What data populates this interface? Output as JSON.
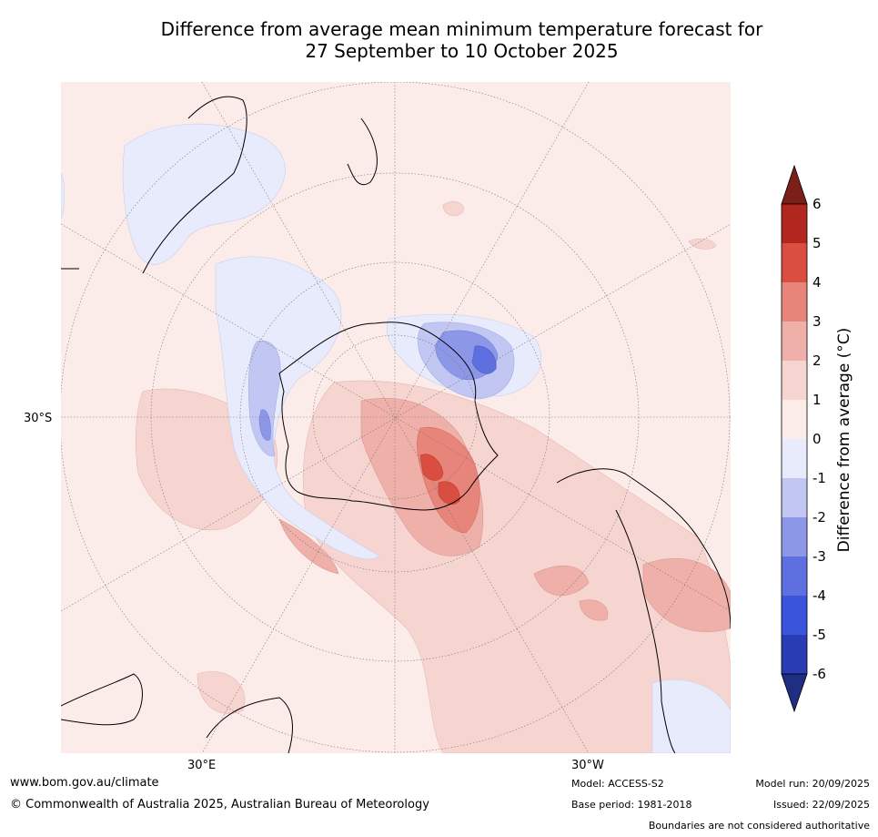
{
  "title": {
    "line1": "Difference from average mean minimum temperature forecast for",
    "line2": "27 September to 10 October 2025"
  },
  "map": {
    "lat_label": "30°S",
    "lon_labels": [
      "30°E",
      "30°W"
    ],
    "projection": "South Polar Stereographic",
    "region": "Southern Hemisphere / Antarctica"
  },
  "colorbar": {
    "label": "Difference from average (°C)",
    "ticks": [
      "6",
      "5",
      "4",
      "3",
      "2",
      "1",
      "0",
      "-1",
      "-2",
      "-3",
      "-4",
      "-5",
      "-6"
    ],
    "colors": {
      "extend_high": "#7b1f18",
      "5_6": "#b1271f",
      "4_5": "#d94e40",
      "3_4": "#e8857b",
      "2_3": "#efb0a9",
      "1_2": "#f6d5d1",
      "0_1": "#fbece9",
      "m1_0": "#e8ebfb",
      "m2_m1": "#c1c7f2",
      "m3_m2": "#8d97e8",
      "m4_m3": "#5e6fe0",
      "m5_m4": "#3a54dc",
      "m6_m5": "#2a3cb4",
      "extend_low": "#1f2d83"
    }
  },
  "footer": {
    "url": "www.bom.gov.au/climate",
    "copyright": "© Commonwealth of Australia 2025, Australian Bureau of Meteorology",
    "model": "Model: ACCESS-S2",
    "base_period": "Base period: 1981-2018",
    "model_run": "Model run: 20/09/2025",
    "issued": "Issued: 22/09/2025",
    "disclaimer": "Boundaries are not considered authoritative"
  }
}
